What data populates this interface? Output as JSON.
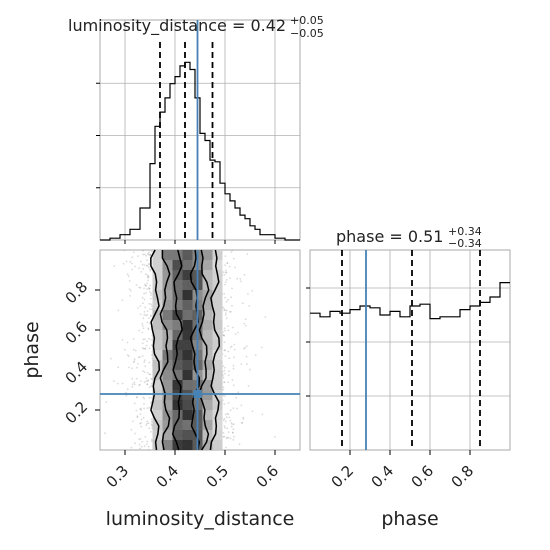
{
  "chart_data": {
    "type": "corner",
    "parameters": [
      "luminosity_distance",
      "phase"
    ],
    "truth": {
      "luminosity_distance": 0.445,
      "phase": 0.28
    },
    "panels": {
      "ld_hist": {
        "type": "histogram",
        "title": "luminosity_distance = 0.42",
        "title_sup": "+0.05",
        "title_sub": "−0.05",
        "xlim": [
          0.25,
          0.65
        ],
        "quantiles": [
          0.37,
          0.42,
          0.475
        ],
        "bin_edges": [
          0.25,
          0.27,
          0.29,
          0.31,
          0.33,
          0.35,
          0.36,
          0.37,
          0.38,
          0.39,
          0.4,
          0.41,
          0.42,
          0.43,
          0.44,
          0.45,
          0.46,
          0.47,
          0.48,
          0.49,
          0.5,
          0.51,
          0.52,
          0.53,
          0.54,
          0.55,
          0.56,
          0.57,
          0.58,
          0.6,
          0.62,
          0.65
        ],
        "counts": [
          0,
          0.01,
          0.03,
          0.06,
          0.18,
          0.43,
          0.64,
          0.72,
          0.8,
          0.88,
          0.92,
          0.98,
          1.0,
          0.96,
          0.8,
          0.6,
          0.56,
          0.45,
          0.44,
          0.32,
          0.26,
          0.22,
          0.18,
          0.14,
          0.12,
          0.08,
          0.06,
          0.03,
          0.03,
          0.01,
          0
        ]
      },
      "phase_hist": {
        "type": "histogram",
        "title": "phase = 0.51",
        "title_sup": "+0.34",
        "title_sub": "−0.34",
        "xlim": [
          0.0,
          1.0
        ],
        "quantiles": [
          0.16,
          0.51,
          0.85
        ],
        "bin_edges": [
          0,
          0.05,
          0.1,
          0.15,
          0.2,
          0.25,
          0.3,
          0.35,
          0.4,
          0.45,
          0.5,
          0.55,
          0.6,
          0.65,
          0.7,
          0.75,
          0.8,
          0.85,
          0.9,
          0.95,
          1.0
        ],
        "counts": [
          0.76,
          0.74,
          0.77,
          0.76,
          0.78,
          0.8,
          0.79,
          0.75,
          0.77,
          0.74,
          0.8,
          0.81,
          0.73,
          0.74,
          0.74,
          0.78,
          0.8,
          0.82,
          0.85,
          0.93
        ]
      },
      "joint": {
        "type": "2d-density",
        "xlim": [
          0.25,
          0.65
        ],
        "ylim": [
          0.0,
          1.0
        ],
        "x_center": 0.42,
        "x_sigma": 0.045
      }
    },
    "axes": {
      "x_left_ticks": [
        "0.3",
        "0.4",
        "0.5",
        "0.6"
      ],
      "x_right_ticks": [
        "0.2",
        "0.4",
        "0.6",
        "0.8"
      ],
      "y_ticks": [
        "0.2",
        "0.4",
        "0.6",
        "0.8"
      ],
      "xlabel_left": "luminosity_distance",
      "xlabel_right": "phase",
      "ylabel": "phase"
    },
    "colors": {
      "truth": "#4682b4",
      "hist": "#000000",
      "grid": "#b0b0b0"
    }
  }
}
